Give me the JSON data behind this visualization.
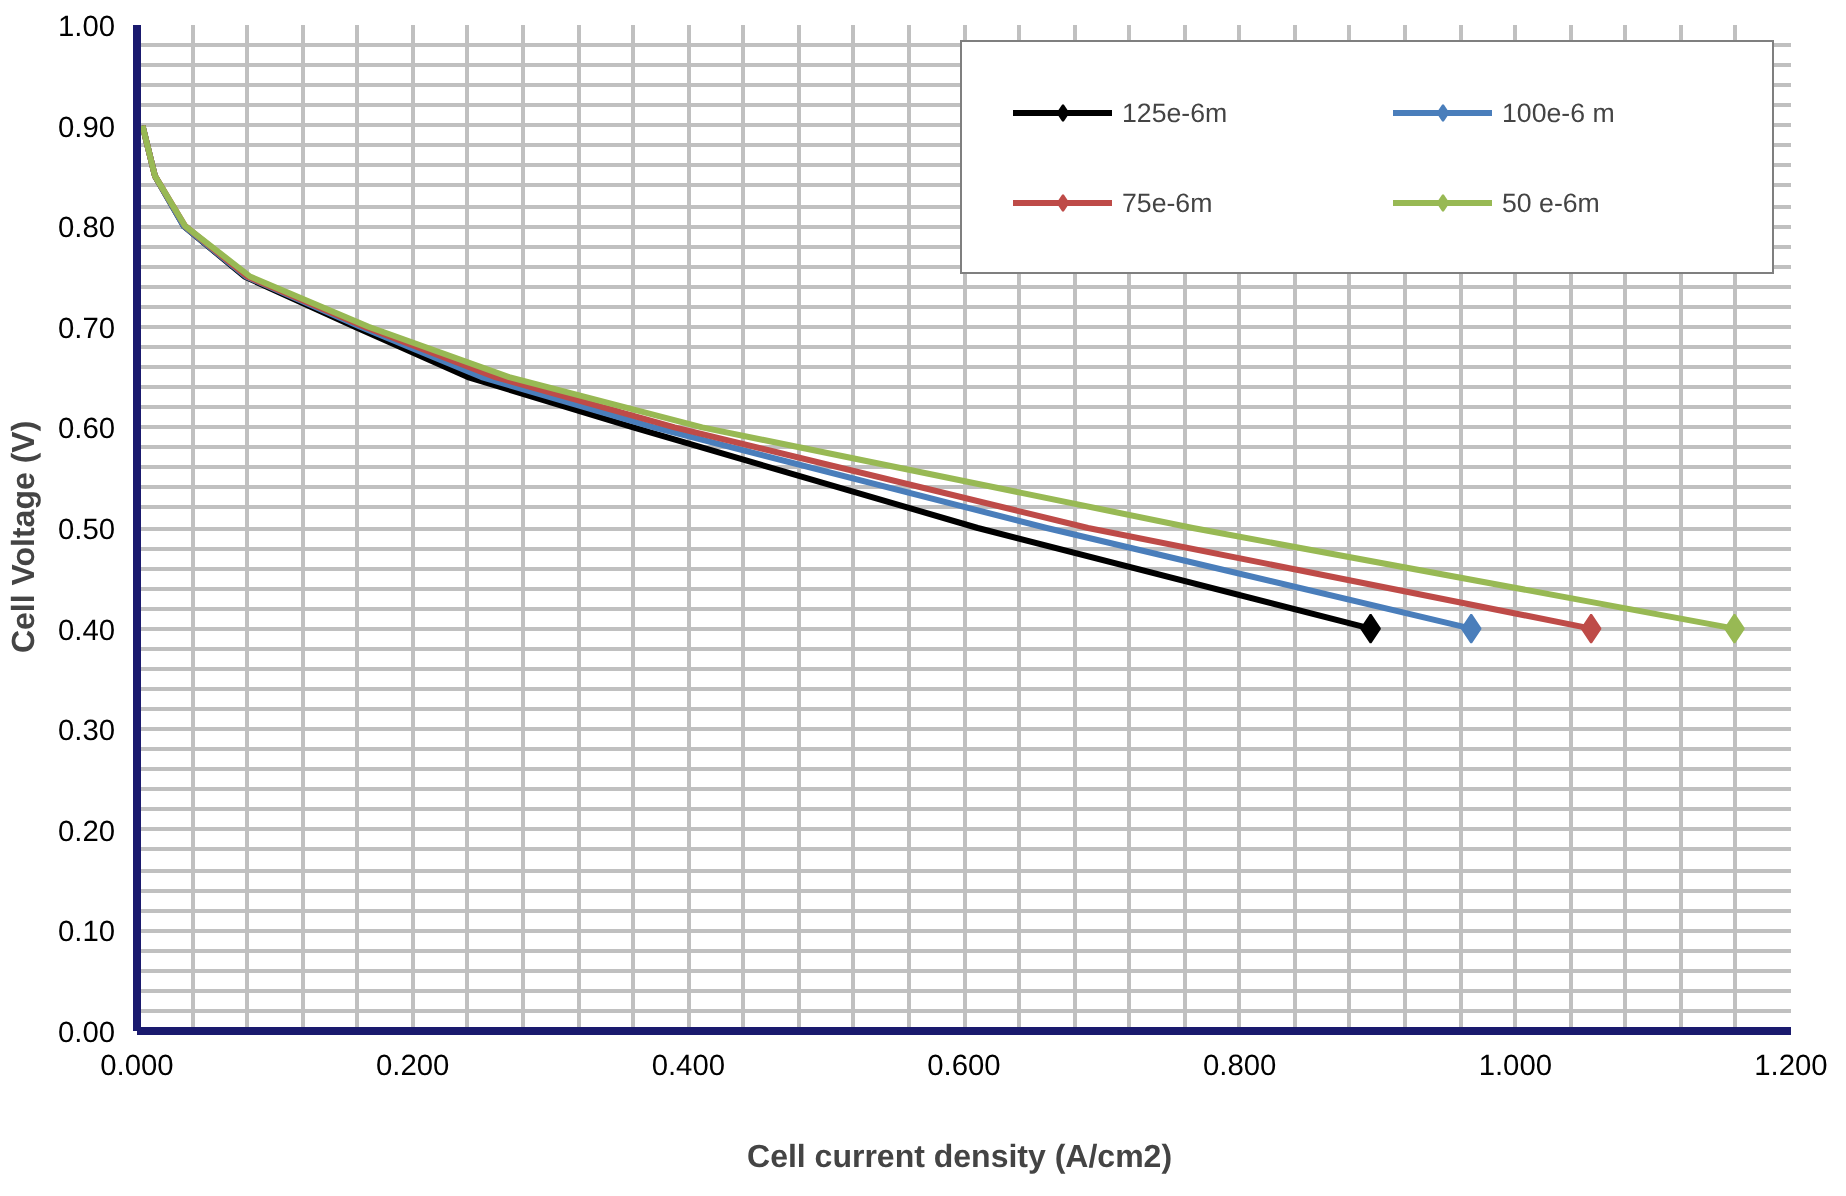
{
  "chart_data": {
    "type": "line",
    "xlabel": "Cell current density  (A/cm2)",
    "ylabel": "Cell   Voltage (V)",
    "xlim": [
      0,
      1.2
    ],
    "ylim": [
      0,
      1.0
    ],
    "xticks": [
      {
        "value": 0,
        "label": "0.000"
      },
      {
        "value": 0.2,
        "label": "0.200"
      },
      {
        "value": 0.4,
        "label": "0.400"
      },
      {
        "value": 0.6,
        "label": "0.600"
      },
      {
        "value": 0.8,
        "label": "0.800"
      },
      {
        "value": 1.0,
        "label": "1.000"
      },
      {
        "value": 1.2,
        "label": "1.200"
      }
    ],
    "yticks": [
      {
        "value": 0,
        "label": "0.00"
      },
      {
        "value": 0.1,
        "label": "0.10"
      },
      {
        "value": 0.2,
        "label": "0.20"
      },
      {
        "value": 0.3,
        "label": "0.30"
      },
      {
        "value": 0.4,
        "label": "0.40"
      },
      {
        "value": 0.5,
        "label": "0.50"
      },
      {
        "value": 0.6,
        "label": "0.60"
      },
      {
        "value": 0.7,
        "label": "0.70"
      },
      {
        "value": 0.8,
        "label": "0.80"
      },
      {
        "value": 0.9,
        "label": "0.90"
      },
      {
        "value": 1.0,
        "label": "1.00"
      }
    ],
    "grid": true,
    "legend": "top right",
    "line_style": "solid",
    "series": [
      {
        "name": "125e-6m",
        "color": "#000000",
        "marker": "none",
        "x": [
          0.004,
          0.013,
          0.034,
          0.078,
          0.158,
          0.24,
          0.36,
          0.61,
          0.895
        ],
        "values": [
          0.9,
          0.85,
          0.8,
          0.75,
          0.7,
          0.65,
          0.6,
          0.5,
          0.4
        ]
      },
      {
        "type": "scatter",
        "color": "#000000",
        "marker": "diamond",
        "x": [
          0.895
        ],
        "values": [
          0.4
        ]
      },
      {
        "name": "100e-6 m",
        "color": "#4a7ebb",
        "marker": "none",
        "x": [
          0.004,
          0.013,
          0.034,
          0.079,
          0.162,
          0.25,
          0.375,
          0.66,
          0.968
        ],
        "values": [
          0.9,
          0.85,
          0.8,
          0.75,
          0.7,
          0.65,
          0.6,
          0.5,
          0.4
        ]
      },
      {
        "type": "scatter",
        "color": "#4a7ebb",
        "marker": "diamond",
        "x": [
          0.968
        ],
        "values": [
          0.4
        ]
      },
      {
        "name": "75e-6m",
        "color": "#be4b48",
        "marker": "none",
        "x": [
          0.004,
          0.013,
          0.035,
          0.08,
          0.165,
          0.26,
          0.39,
          0.69,
          1.055
        ],
        "values": [
          0.9,
          0.85,
          0.8,
          0.75,
          0.7,
          0.65,
          0.6,
          0.5,
          0.4
        ]
      },
      {
        "type": "scatter",
        "color": "#be4b48",
        "marker": "diamond",
        "x": [
          1.055
        ],
        "values": [
          0.4
        ]
      },
      {
        "name": "50 e-6m",
        "color": "#98b954",
        "marker": "none",
        "x": [
          0.004,
          0.013,
          0.035,
          0.082,
          0.168,
          0.27,
          0.41,
          0.766,
          1.159
        ],
        "values": [
          0.9,
          0.85,
          0.8,
          0.75,
          0.7,
          0.65,
          0.6,
          0.5,
          0.4
        ]
      },
      {
        "type": "scatter",
        "color": "#98b954",
        "marker": "diamond",
        "x": [
          1.159
        ],
        "values": [
          0.4
        ]
      }
    ]
  }
}
